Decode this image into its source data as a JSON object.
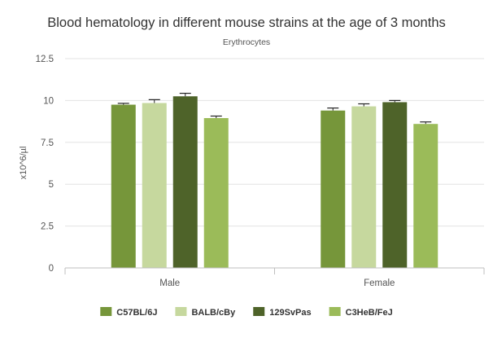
{
  "chart_data": {
    "type": "bar",
    "title": "Blood hematology in different mouse strains at the age of 3 months",
    "subtitle": "Erythrocytes",
    "xlabel": "",
    "ylabel": "x10^6/µl",
    "ylim": [
      0,
      12.5
    ],
    "yticks": [
      "0",
      "2.5",
      "5",
      "7.5",
      "10",
      "12.5"
    ],
    "grid": true,
    "legend_position": "bottom",
    "categories": [
      "Male",
      "Female"
    ],
    "series": [
      {
        "name": "C57BL/6J",
        "color": "#76963a",
        "values": [
          9.75,
          9.4
        ],
        "errors": [
          0.08,
          0.15
        ]
      },
      {
        "name": "BALB/cBy",
        "color": "#c6d89e",
        "values": [
          9.85,
          9.65
        ],
        "errors": [
          0.2,
          0.15
        ]
      },
      {
        "name": "129SvPas",
        "color": "#4e6329",
        "values": [
          10.25,
          9.9
        ],
        "errors": [
          0.18,
          0.1
        ]
      },
      {
        "name": "C3HeB/FeJ",
        "color": "#9bbb59",
        "values": [
          8.95,
          8.6
        ],
        "errors": [
          0.12,
          0.12
        ]
      }
    ]
  }
}
